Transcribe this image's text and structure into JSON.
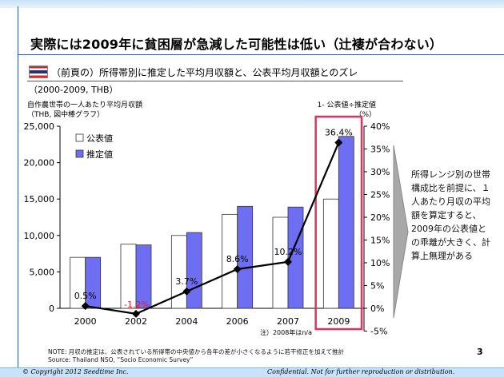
{
  "slide": {
    "title": "実際には2009年に貧困層が急減した可能性は低い（辻褄が合わない）",
    "subtitle": "（前頁の）所得帯別に推定した平均月収額と、公表平均月収額とのズレ",
    "subnote": "（2000-2009, THB）",
    "left_axis_label_1": "自作農世帯の一人あたり平均月収額",
    "left_axis_label_2": "（THB, 図中棒グラフ）",
    "right_axis_label_1": "1- 公表値÷推定値",
    "right_axis_label_2": "（%）",
    "footnote_2008": "注）2008年はn/a",
    "callout": "所得レンジ別の世帯構成比を前提に、１人あたり月収の平均額を算定すると、2009年の公表値との乖離が大きく、計算上無理がある",
    "note_line_1": "NOTE: 月収の推定は、公表されている所得帯の中央値から各年の差が小さくなるように若干修正を加えて推計",
    "note_line_2": "Source: Thailand NSO, “Socio Economic Survey”",
    "page_number": "3",
    "footer_left": "© Copyright 2012 Seedtime Inc.",
    "footer_right": "Confidential. Not for further reproduction or distribution.",
    "flag_icon": "thailand-flag-icon"
  },
  "chart_data": {
    "type": "bar",
    "categories": [
      "2000",
      "2002",
      "2004",
      "2006",
      "2007",
      "2009"
    ],
    "series": [
      {
        "name": "公表値",
        "values": [
          7000,
          8800,
          10000,
          12900,
          12500,
          15000
        ],
        "color": "#ffffff"
      },
      {
        "name": "推定値",
        "values": [
          7000,
          8700,
          10400,
          14000,
          13900,
          23600
        ],
        "color": "#6e6ef2"
      }
    ],
    "line_series": {
      "values": [
        0.5,
        -1.2,
        3.7,
        8.6,
        10.2,
        36.4
      ],
      "labels": [
        "0.5%",
        "-1.2%",
        "3.7%",
        "8.6%",
        "10.2%",
        "36.4%"
      ],
      "label_colors": [
        "#000000",
        "#e02020",
        "#000000",
        "#000000",
        "#000000",
        "#000000"
      ],
      "color": "#000000"
    },
    "y_left": {
      "ylim": [
        0,
        25000
      ],
      "ticks": [
        "0",
        "5,000",
        "10,000",
        "15,000",
        "20,000",
        "25,000"
      ]
    },
    "y_right": {
      "ylim": [
        -5,
        40
      ],
      "ticks": [
        "-5%",
        "0%",
        "5%",
        "10%",
        "15%",
        "20%",
        "25%",
        "30%",
        "35%",
        "40%"
      ]
    },
    "legend_position": "top-left",
    "highlight_category": "2009",
    "highlight_color": "#e8305a"
  }
}
